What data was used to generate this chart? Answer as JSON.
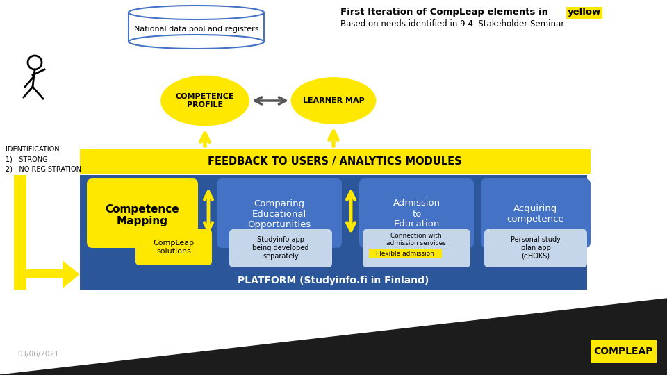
{
  "bg_color": "#ffffff",
  "dark_bg": "#1c1c1c",
  "yellow": "#FFE800",
  "blue_dark": "#2B579A",
  "blue_mid": "#4472C4",
  "blue_light": "#C5D5EA",
  "white": "#ffffff",
  "gray_border": "#4472C4",
  "db_label": "National data pool and registers",
  "competence_profile": "COMPETENCE\nPROFILE",
  "learner_map": "LEARNER MAP",
  "feedback_label": "FEEDBACK TO USERS / ANALYTICS MODULES",
  "identification": "IDENTIFICATION\n1)   STRONG\n2)   NO REGISTRATION",
  "comp_mapping": "Competence\nMapping",
  "compleap_solutions": "CompLeap\nsolutions",
  "comparing": "Comparing\nEducational\nOpportunities",
  "studyinfo": "Studyinfo app\nbeing developed\nseparately",
  "admission": "Admission\nto\nEducation",
  "connection": "Connection with\nadmission services",
  "flexible": "Flexible admission",
  "acquiring": "Acquiring\ncompetence",
  "personal_study": "Personal study\nplan app\n(eHOKS)",
  "platform": "PLATFORM (Studyinfo.fi in Finland)",
  "date": "03/06/2021",
  "compleap_logo": "COMPLEAP",
  "title_pre": "First Iteration of CompLeap elements in ",
  "title_highlight": "yellow",
  "title_sub": "Based on needs identified in 9.4. Stakeholder Seminar"
}
